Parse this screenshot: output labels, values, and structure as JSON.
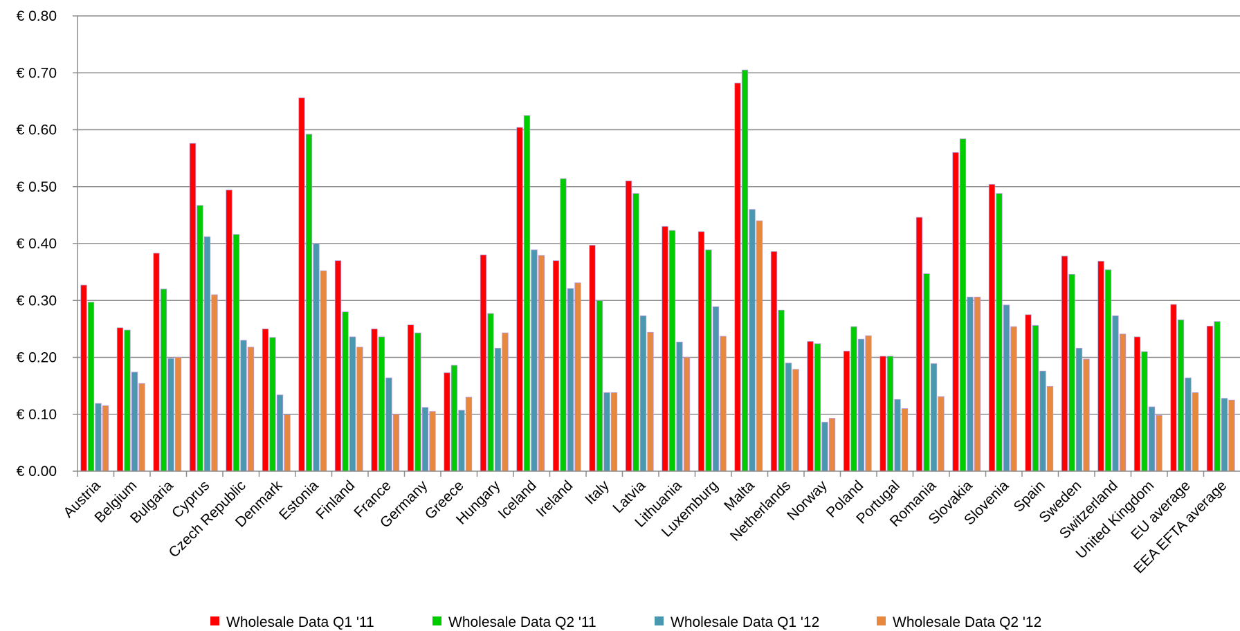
{
  "chart_data": {
    "type": "bar",
    "title": "",
    "xlabel": "",
    "ylabel": "",
    "ylim": [
      0,
      0.8
    ],
    "yticks": [
      "€ 0.00",
      "€ 0.10",
      "€ 0.20",
      "€ 0.30",
      "€ 0.40",
      "€ 0.50",
      "€ 0.60",
      "€ 0.70",
      "€ 0.80"
    ],
    "grid": true,
    "legend_position": "bottom",
    "categories": [
      "Austria",
      "Belgium",
      "Bulgaria",
      "Cyprus",
      "Czech Republic",
      "Denmark",
      "Estonia",
      "Finland",
      "France",
      "Germany",
      "Greece",
      "Hungary",
      "Iceland",
      "Ireland",
      "Italy",
      "Latvia",
      "Lithuania",
      "Luxemburg",
      "Malta",
      "Netherlands",
      "Norway",
      "Poland",
      "Portugal",
      "Romania",
      "Slovakia",
      "Slovenia",
      "Spain",
      "Sweden",
      "Switzerland",
      "United Kingdom",
      "EU average",
      "EEA EFTA average"
    ],
    "series": [
      {
        "name": "Wholesale Data Q1 '11",
        "color": "#ff0000",
        "values": [
          0.327,
          0.252,
          0.383,
          0.576,
          0.494,
          0.25,
          0.656,
          0.37,
          0.25,
          0.257,
          0.173,
          0.38,
          0.604,
          0.37,
          0.397,
          0.51,
          0.43,
          0.421,
          0.682,
          0.386,
          0.228,
          0.211,
          0.202,
          0.446,
          0.56,
          0.504,
          0.275,
          0.378,
          0.369,
          0.236,
          0.293,
          0.255
        ]
      },
      {
        "name": "Wholesale Data Q2 '11",
        "color": "#00cc00",
        "values": [
          0.297,
          0.248,
          0.32,
          0.467,
          0.416,
          0.235,
          0.592,
          0.28,
          0.236,
          0.243,
          0.186,
          0.277,
          0.625,
          0.514,
          0.3,
          0.488,
          0.423,
          0.389,
          0.705,
          0.283,
          0.224,
          0.254,
          0.202,
          0.347,
          0.584,
          0.488,
          0.256,
          0.346,
          0.354,
          0.21,
          0.266,
          0.263
        ]
      },
      {
        "name": "Wholesale Data Q1 '12",
        "color": "#4a97b0",
        "values": [
          0.119,
          0.174,
          0.198,
          0.412,
          0.23,
          0.134,
          0.4,
          0.236,
          0.164,
          0.112,
          0.107,
          0.216,
          0.389,
          0.321,
          0.138,
          0.273,
          0.227,
          0.289,
          0.46,
          0.19,
          0.086,
          0.232,
          0.126,
          0.189,
          0.306,
          0.292,
          0.176,
          0.216,
          0.273,
          0.113,
          0.164,
          0.128
        ]
      },
      {
        "name": "Wholesale Data Q2 '12",
        "color": "#e8873e",
        "values": [
          0.115,
          0.154,
          0.2,
          0.31,
          0.218,
          0.099,
          0.352,
          0.218,
          0.1,
          0.105,
          0.13,
          0.243,
          0.379,
          0.331,
          0.138,
          0.244,
          0.2,
          0.237,
          0.44,
          0.179,
          0.093,
          0.238,
          0.11,
          0.131,
          0.306,
          0.254,
          0.149,
          0.197,
          0.241,
          0.098,
          0.138,
          0.125
        ]
      }
    ]
  }
}
